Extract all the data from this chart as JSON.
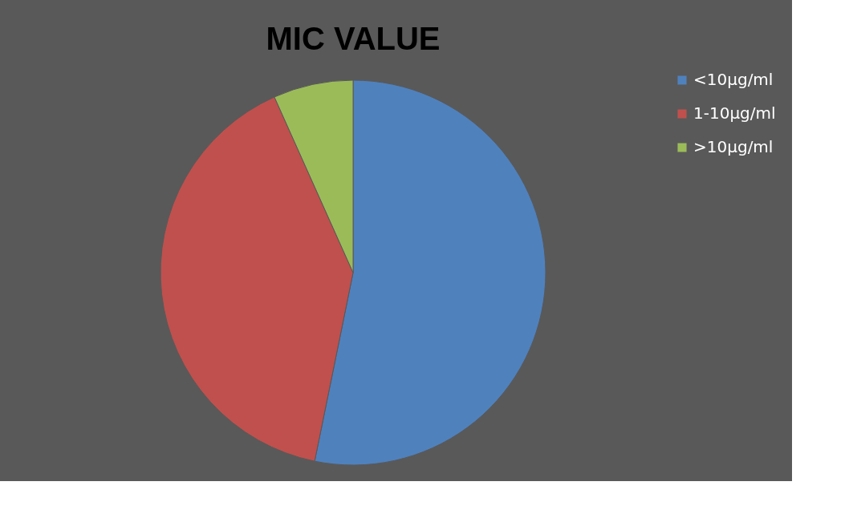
{
  "chart_data": {
    "type": "pie",
    "title": "MIC VALUE",
    "categories": [
      "<10μg/ml",
      "1-10μg/ml",
      ">10μg/ml"
    ],
    "values": [
      53.2,
      40.1,
      6.7
    ],
    "colors": [
      "#4f81bd",
      "#c0504d",
      "#9bbb59"
    ],
    "legend": "right"
  }
}
